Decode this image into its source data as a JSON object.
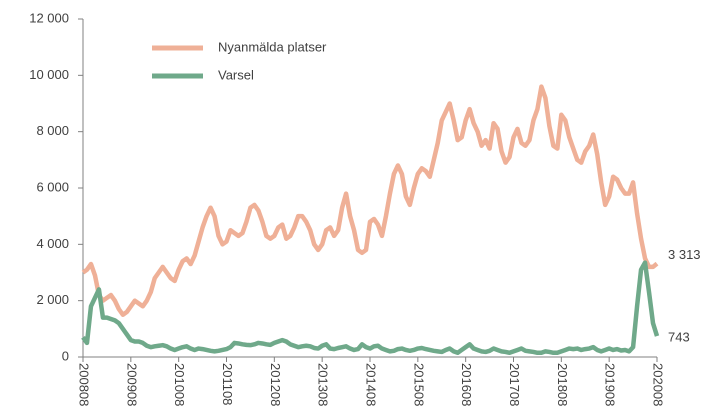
{
  "chart_data": {
    "type": "line",
    "categories": [
      "200808",
      null,
      null,
      null,
      null,
      null,
      null,
      null,
      null,
      null,
      null,
      null,
      "200908",
      null,
      null,
      null,
      null,
      null,
      null,
      null,
      null,
      null,
      null,
      null,
      "201008",
      null,
      null,
      null,
      null,
      null,
      null,
      null,
      null,
      null,
      null,
      null,
      "201108",
      null,
      null,
      null,
      null,
      null,
      null,
      null,
      null,
      null,
      null,
      null,
      "201208",
      null,
      null,
      null,
      null,
      null,
      null,
      null,
      null,
      null,
      null,
      null,
      "201308",
      null,
      null,
      null,
      null,
      null,
      null,
      null,
      null,
      null,
      null,
      null,
      "201408",
      null,
      null,
      null,
      null,
      null,
      null,
      null,
      null,
      null,
      null,
      null,
      "201508",
      null,
      null,
      null,
      null,
      null,
      null,
      null,
      null,
      null,
      null,
      null,
      "201608",
      null,
      null,
      null,
      null,
      null,
      null,
      null,
      null,
      null,
      null,
      null,
      "201708",
      null,
      null,
      null,
      null,
      null,
      null,
      null,
      null,
      null,
      null,
      null,
      "201808",
      null,
      null,
      null,
      null,
      null,
      null,
      null,
      null,
      null,
      null,
      null,
      "201908",
      null,
      null,
      null,
      null,
      null,
      null,
      null,
      null,
      null,
      null,
      null,
      "202008"
    ],
    "series": [
      {
        "name": "Nyanmälda platser",
        "color": "#efb097",
        "values": [
          3000,
          3100,
          3300,
          2900,
          2200,
          2000,
          2100,
          2200,
          2000,
          1700,
          1500,
          1600,
          1800,
          2000,
          1900,
          1800,
          2000,
          2300,
          2800,
          3000,
          3200,
          3000,
          2800,
          2700,
          3100,
          3400,
          3500,
          3300,
          3600,
          4100,
          4600,
          5000,
          5300,
          5000,
          4300,
          4000,
          4100,
          4500,
          4400,
          4300,
          4400,
          4800,
          5300,
          5400,
          5200,
          4800,
          4300,
          4200,
          4300,
          4600,
          4700,
          4200,
          4300,
          4600,
          5000,
          5000,
          4800,
          4500,
          4000,
          3800,
          4000,
          4500,
          4600,
          4300,
          4500,
          5300,
          5800,
          5000,
          4500,
          3800,
          3700,
          3800,
          4800,
          4900,
          4700,
          4300,
          5000,
          5800,
          6500,
          6800,
          6500,
          5700,
          5400,
          6000,
          6500,
          6700,
          6600,
          6400,
          7000,
          7600,
          8400,
          8700,
          9000,
          8400,
          7700,
          7800,
          8400,
          8800,
          8300,
          8000,
          7500,
          7700,
          7400,
          8300,
          8100,
          7300,
          6900,
          7100,
          7800,
          8100,
          7600,
          7500,
          7700,
          8400,
          8800,
          9600,
          9200,
          8200,
          7500,
          7400,
          8600,
          8400,
          7800,
          7400,
          7000,
          6900,
          7300,
          7500,
          7900,
          7200,
          6200,
          5400,
          5700,
          6400,
          6300,
          6000,
          5800,
          5800,
          6200,
          5100,
          4200,
          3500,
          3200,
          3200,
          3313
        ],
        "value_labels": [
          null,
          null,
          null,
          null,
          null,
          null,
          null,
          null,
          null,
          null,
          null,
          null,
          null,
          null,
          null,
          null,
          null,
          null,
          null,
          null,
          null,
          null,
          null,
          null,
          null,
          null,
          null,
          null,
          null,
          null,
          null,
          null,
          null,
          null,
          null,
          null,
          null,
          null,
          null,
          null,
          null,
          null,
          null,
          null,
          null,
          null,
          null,
          null,
          null,
          null,
          null,
          null,
          null,
          null,
          null,
          null,
          null,
          null,
          null,
          null,
          null,
          null,
          null,
          null,
          null,
          null,
          null,
          null,
          null,
          null,
          null,
          null,
          null,
          null,
          null,
          null,
          null,
          null,
          null,
          null,
          null,
          null,
          null,
          null,
          null,
          null,
          null,
          null,
          null,
          null,
          null,
          null,
          null,
          null,
          null,
          null,
          null,
          null,
          null,
          null,
          null,
          null,
          null,
          null,
          null,
          null,
          null,
          null,
          null,
          null,
          null,
          null,
          null,
          null,
          null,
          null,
          null,
          null,
          null,
          null,
          null,
          null,
          null,
          null,
          null,
          null,
          null,
          null,
          null,
          null,
          null,
          null,
          null,
          null,
          null,
          null,
          null,
          null,
          null,
          null,
          null,
          null,
          null,
          null,
          "3 313"
        ]
      },
      {
        "name": "Varsel",
        "color": "#6fa98a",
        "values": [
          700,
          500,
          1800,
          2100,
          2400,
          1400,
          1400,
          1350,
          1300,
          1200,
          1000,
          800,
          600,
          550,
          550,
          500,
          400,
          350,
          380,
          400,
          420,
          380,
          300,
          250,
          300,
          350,
          380,
          300,
          250,
          300,
          280,
          250,
          220,
          200,
          220,
          250,
          280,
          350,
          500,
          480,
          450,
          430,
          420,
          450,
          500,
          480,
          450,
          430,
          500,
          550,
          600,
          550,
          450,
          400,
          350,
          380,
          400,
          380,
          320,
          300,
          400,
          450,
          300,
          280,
          320,
          350,
          380,
          300,
          250,
          280,
          450,
          350,
          300,
          380,
          400,
          300,
          250,
          200,
          220,
          280,
          300,
          250,
          220,
          250,
          300,
          320,
          280,
          250,
          220,
          200,
          180,
          250,
          300,
          200,
          150,
          250,
          350,
          450,
          300,
          250,
          200,
          180,
          220,
          300,
          250,
          200,
          180,
          150,
          200,
          250,
          300,
          220,
          200,
          180,
          150,
          150,
          200,
          180,
          150,
          150,
          200,
          250,
          300,
          280,
          300,
          250,
          280,
          300,
          350,
          250,
          200,
          250,
          300,
          250,
          280,
          230,
          250,
          200,
          350,
          1800,
          3100,
          3350,
          2300,
          1200,
          743
        ],
        "value_labels": [
          null,
          null,
          null,
          null,
          null,
          null,
          null,
          null,
          null,
          null,
          null,
          null,
          null,
          null,
          null,
          null,
          null,
          null,
          null,
          null,
          null,
          null,
          null,
          null,
          null,
          null,
          null,
          null,
          null,
          null,
          null,
          null,
          null,
          null,
          null,
          null,
          null,
          null,
          null,
          null,
          null,
          null,
          null,
          null,
          null,
          null,
          null,
          null,
          null,
          null,
          null,
          null,
          null,
          null,
          null,
          null,
          null,
          null,
          null,
          null,
          null,
          null,
          null,
          null,
          null,
          null,
          null,
          null,
          null,
          null,
          null,
          null,
          null,
          null,
          null,
          null,
          null,
          null,
          null,
          null,
          null,
          null,
          null,
          null,
          null,
          null,
          null,
          null,
          null,
          null,
          null,
          null,
          null,
          null,
          null,
          null,
          null,
          null,
          null,
          null,
          null,
          null,
          null,
          null,
          null,
          null,
          null,
          null,
          null,
          null,
          null,
          null,
          null,
          null,
          null,
          null,
          null,
          null,
          null,
          null,
          null,
          null,
          null,
          null,
          null,
          null,
          null,
          null,
          null,
          null,
          null,
          null,
          null,
          null,
          null,
          null,
          null,
          null,
          null,
          null,
          null,
          null,
          null,
          null,
          "743"
        ]
      }
    ],
    "ylim": [
      0,
      12000
    ],
    "yticks": [
      0,
      {
        "value": 2000,
        "label": "2 000"
      },
      {
        "value": 4000,
        "label": "4 000"
      },
      {
        "value": 6000,
        "label": "6 000"
      },
      {
        "value": 8000,
        "label": "8 000"
      },
      {
        "value": 10000,
        "label": "10 000"
      },
      {
        "value": 12000,
        "label": "12 000"
      }
    ],
    "legend": "upper left"
  }
}
